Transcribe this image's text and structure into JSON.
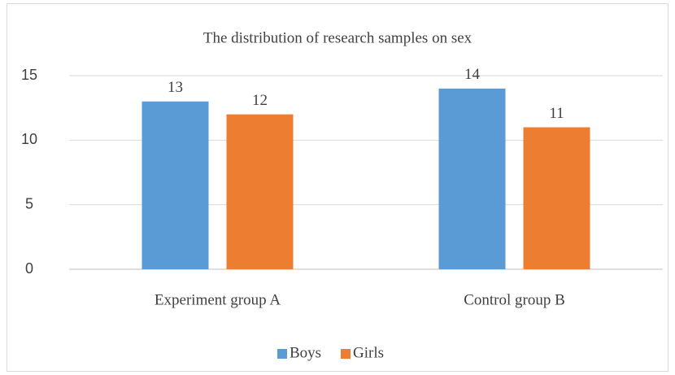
{
  "chart_data": {
    "type": "bar",
    "title": "The distribution of research samples on sex",
    "categories": [
      "Experiment group A",
      "Control group B"
    ],
    "series": [
      {
        "name": "Boys",
        "color": "#5b9bd5",
        "values": [
          13,
          14
        ]
      },
      {
        "name": "Girls",
        "color": "#ed7d31",
        "values": [
          12,
          11
        ]
      }
    ],
    "ylim": [
      0,
      15
    ],
    "yticks": [
      0,
      5,
      10,
      15
    ],
    "grid": true,
    "legend": "bottom"
  }
}
